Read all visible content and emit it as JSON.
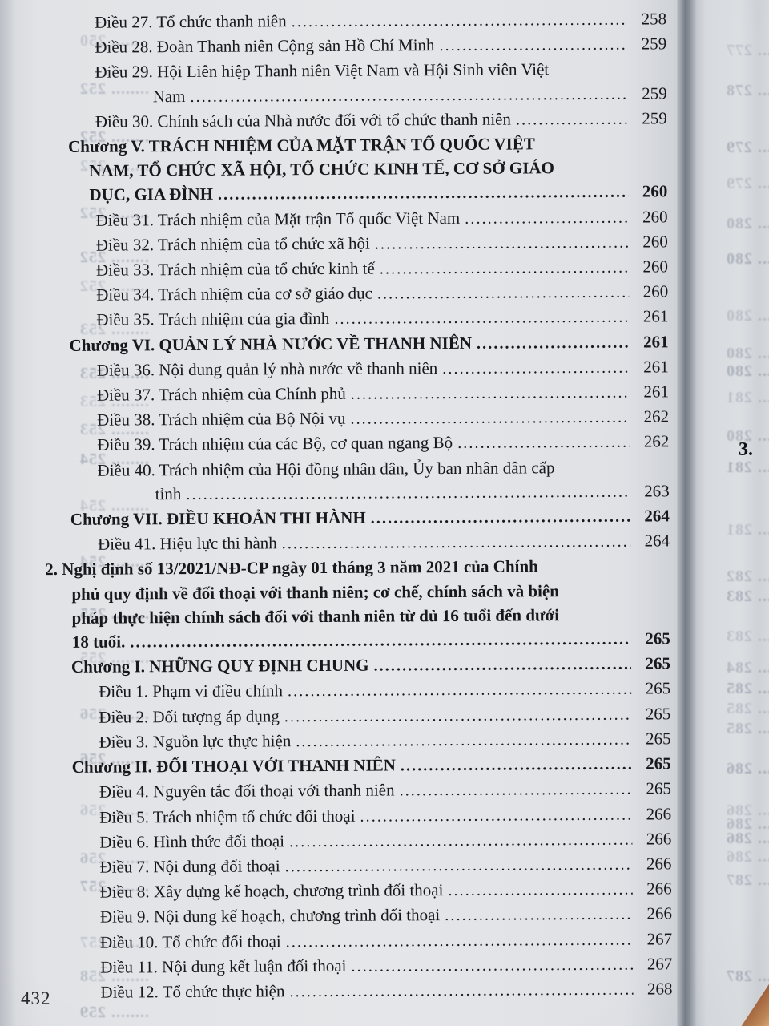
{
  "page": {
    "folio": "432",
    "next_page_peek": "3."
  },
  "toc": {
    "entries": [
      {
        "level": "article",
        "lines": [
          "Điều 27. Tổ chức thanh niên"
        ],
        "page": "258"
      },
      {
        "level": "article",
        "lines": [
          "Điều 28. Đoàn Thanh niên Cộng sản Hồ Chí Minh"
        ],
        "page": "259"
      },
      {
        "level": "article",
        "lines": [
          "Điều 29. Hội Liên hiệp Thanh niên Việt Nam và Hội Sinh viên Việt",
          "Nam"
        ],
        "page": "259"
      },
      {
        "level": "article",
        "lines": [
          "Điều 30. Chính sách của Nhà nước đối với tổ chức thanh niên"
        ],
        "page": "259"
      },
      {
        "level": "chapter",
        "lines": [
          "Chương V. TRÁCH NHIỆM CỦA MẶT TRẬN TỔ QUỐC VIỆT",
          "NAM, TỔ CHỨC XÃ HỘI, TỔ CHỨC KINH TẾ, CƠ SỞ GIÁO",
          "DỤC, GIA ĐÌNH"
        ],
        "page": "260"
      },
      {
        "level": "article",
        "lines": [
          "Điều 31. Trách nhiệm của Mặt trận Tổ quốc Việt Nam"
        ],
        "page": "260"
      },
      {
        "level": "article",
        "lines": [
          "Điều 32. Trách nhiệm của tổ chức xã hội"
        ],
        "page": "260"
      },
      {
        "level": "article",
        "lines": [
          "Điều 33. Trách nhiệm của tổ chức kinh tế"
        ],
        "page": "260"
      },
      {
        "level": "article",
        "lines": [
          "Điều 34. Trách nhiệm của cơ sở giáo dục"
        ],
        "page": "260"
      },
      {
        "level": "article",
        "lines": [
          "Điều 35. Trách nhiệm của gia đình"
        ],
        "page": "261"
      },
      {
        "level": "chapter",
        "lines": [
          "Chương VI. QUẢN LÝ NHÀ NƯỚC VỀ THANH NIÊN"
        ],
        "page": "261"
      },
      {
        "level": "article",
        "lines": [
          "Điều 36. Nội dung quản lý nhà nước về thanh niên"
        ],
        "page": "261"
      },
      {
        "level": "article",
        "lines": [
          "Điều 37. Trách nhiệm của Chính phủ"
        ],
        "page": "261"
      },
      {
        "level": "article",
        "lines": [
          "Điều 38. Trách nhiệm của Bộ Nội vụ"
        ],
        "page": "262"
      },
      {
        "level": "article",
        "lines": [
          "Điều 39. Trách nhiệm của các Bộ, cơ quan ngang Bộ"
        ],
        "page": "262"
      },
      {
        "level": "article",
        "lines": [
          "Điều 40. Trách nhiệm của Hội đồng nhân dân, Ủy ban nhân dân cấp",
          "tỉnh"
        ],
        "page": "263"
      },
      {
        "level": "chapter",
        "lines": [
          "Chương VII. ĐIỀU KHOẢN THI HÀNH"
        ],
        "page": "264"
      },
      {
        "level": "article",
        "lines": [
          "Điều 41. Hiệu lực thi hành"
        ],
        "page": "264"
      },
      {
        "level": "item",
        "lines": [
          "2. Nghị định số 13/2021/NĐ-CP ngày 01 tháng 3 năm 2021 của Chính",
          "phủ quy định về đối thoại với thanh niên; cơ chế, chính sách và biện",
          "pháp thực hiện chính sách đối với thanh niên từ đủ 16 tuổi đến dưới",
          "18 tuổi."
        ],
        "page": "265"
      },
      {
        "level": "chapter",
        "lines": [
          "Chương I. NHỮNG QUY ĐỊNH CHUNG"
        ],
        "page": "265"
      },
      {
        "level": "article",
        "lines": [
          "Điều 1. Phạm vi điều chỉnh"
        ],
        "page": "265"
      },
      {
        "level": "article",
        "lines": [
          "Điều 2. Đối tượng áp dụng"
        ],
        "page": "265"
      },
      {
        "level": "article",
        "lines": [
          "Điều 3. Nguồn lực thực hiện"
        ],
        "page": "265"
      },
      {
        "level": "chapter",
        "lines": [
          "Chương II. ĐỐI THOẠI VỚI THANH NIÊN"
        ],
        "page": "265"
      },
      {
        "level": "article",
        "lines": [
          "Điều 4. Nguyên tắc đối thoại với thanh niên"
        ],
        "page": "265"
      },
      {
        "level": "article",
        "lines": [
          "Điều 5. Trách nhiệm tổ chức đối thoại"
        ],
        "page": "266"
      },
      {
        "level": "article",
        "lines": [
          "Điều 6. Hình thức đối thoại"
        ],
        "page": "266"
      },
      {
        "level": "article",
        "lines": [
          "Điều 7. Nội dung đối thoại"
        ],
        "page": "266"
      },
      {
        "level": "article",
        "lines": [
          "Điều 8. Xây dựng kế hoạch, chương trình đối thoại"
        ],
        "page": "266"
      },
      {
        "level": "article",
        "lines": [
          "Điều 9. Nội dung kế hoạch, chương trình đối thoại"
        ],
        "page": "266"
      },
      {
        "level": "article",
        "lines": [
          "Điều 10. Tổ chức đối thoại"
        ],
        "page": "267"
      },
      {
        "level": "article",
        "lines": [
          "Điều 11. Nội dung kết luận đối thoại"
        ],
        "page": "267"
      },
      {
        "level": "article",
        "lines": [
          "Điều 12. Tổ chức thực hiện"
        ],
        "page": "268"
      }
    ]
  },
  "bleedthrough": {
    "left_numbers": [
      "250",
      "252",
      "252",
      "252",
      "252",
      "252",
      "252",
      "253",
      "253",
      "253",
      "253",
      "254",
      "254",
      "254",
      "255",
      "255",
      "256",
      "256",
      "256",
      "256",
      "257",
      "257",
      "258",
      "259"
    ],
    "right_numbers": [
      "277",
      "278",
      "279",
      "279",
      "280",
      "280",
      "280",
      "280",
      "280",
      "281",
      "280",
      "281",
      "281",
      "282",
      "283",
      "283",
      "284",
      "285",
      "285",
      "285",
      "286",
      "286",
      "286",
      "286",
      "286",
      "287",
      "287"
    ]
  },
  "colors": {
    "page_background": "#e3e5e8",
    "text": "#17181c",
    "bleed_text": "#6e788c",
    "page_curl_shadow": "#757c86",
    "finger": "#96512c"
  }
}
